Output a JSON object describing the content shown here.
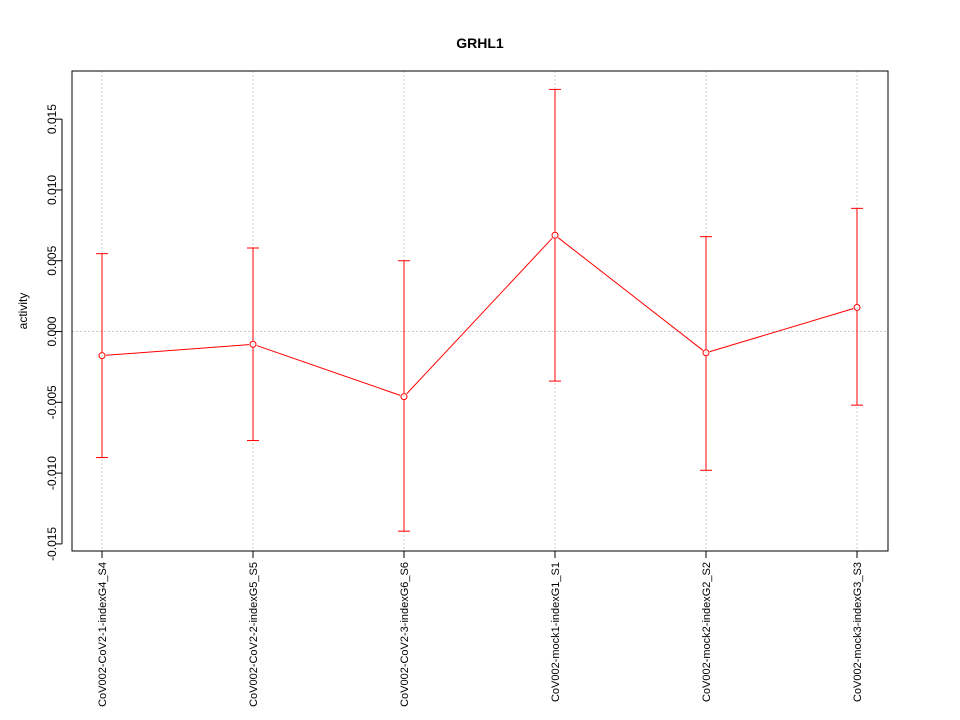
{
  "chart_data": {
    "type": "line",
    "title": "GRHL1",
    "xlabel": "",
    "ylabel": "activity",
    "categories": [
      "CoV002-CoV2-1-indexG4_S4",
      "CoV002-CoV2-2-indexG5_S5",
      "CoV002-CoV2-3-indexG6_S6",
      "CoV002-mock1-indexG1_S1",
      "CoV002-mock2-indexG2_S2",
      "CoV002-mock3-indexG3_S3"
    ],
    "series": [
      {
        "values": [
          -0.0017,
          -0.0009,
          -0.0046,
          0.0068,
          -0.0015,
          0.0017
        ],
        "error_low": [
          -0.0089,
          -0.0077,
          -0.0141,
          -0.0035,
          -0.0098,
          -0.0052
        ],
        "error_high": [
          0.0055,
          0.0059,
          0.005,
          0.0171,
          0.0067,
          0.0087
        ],
        "color": "#ff0000"
      }
    ],
    "ylim": [
      -0.0155,
      0.0184
    ],
    "yticks": [
      -0.015,
      -0.01,
      -0.005,
      0.0,
      0.005,
      0.01,
      0.015
    ],
    "ytick_labels": [
      "-0.015",
      "-0.010",
      "-0.005",
      "0.000",
      "0.005",
      "0.010",
      "0.015"
    ],
    "grid": true,
    "grid_color": "#cccccc",
    "axis_color": "#000000"
  }
}
